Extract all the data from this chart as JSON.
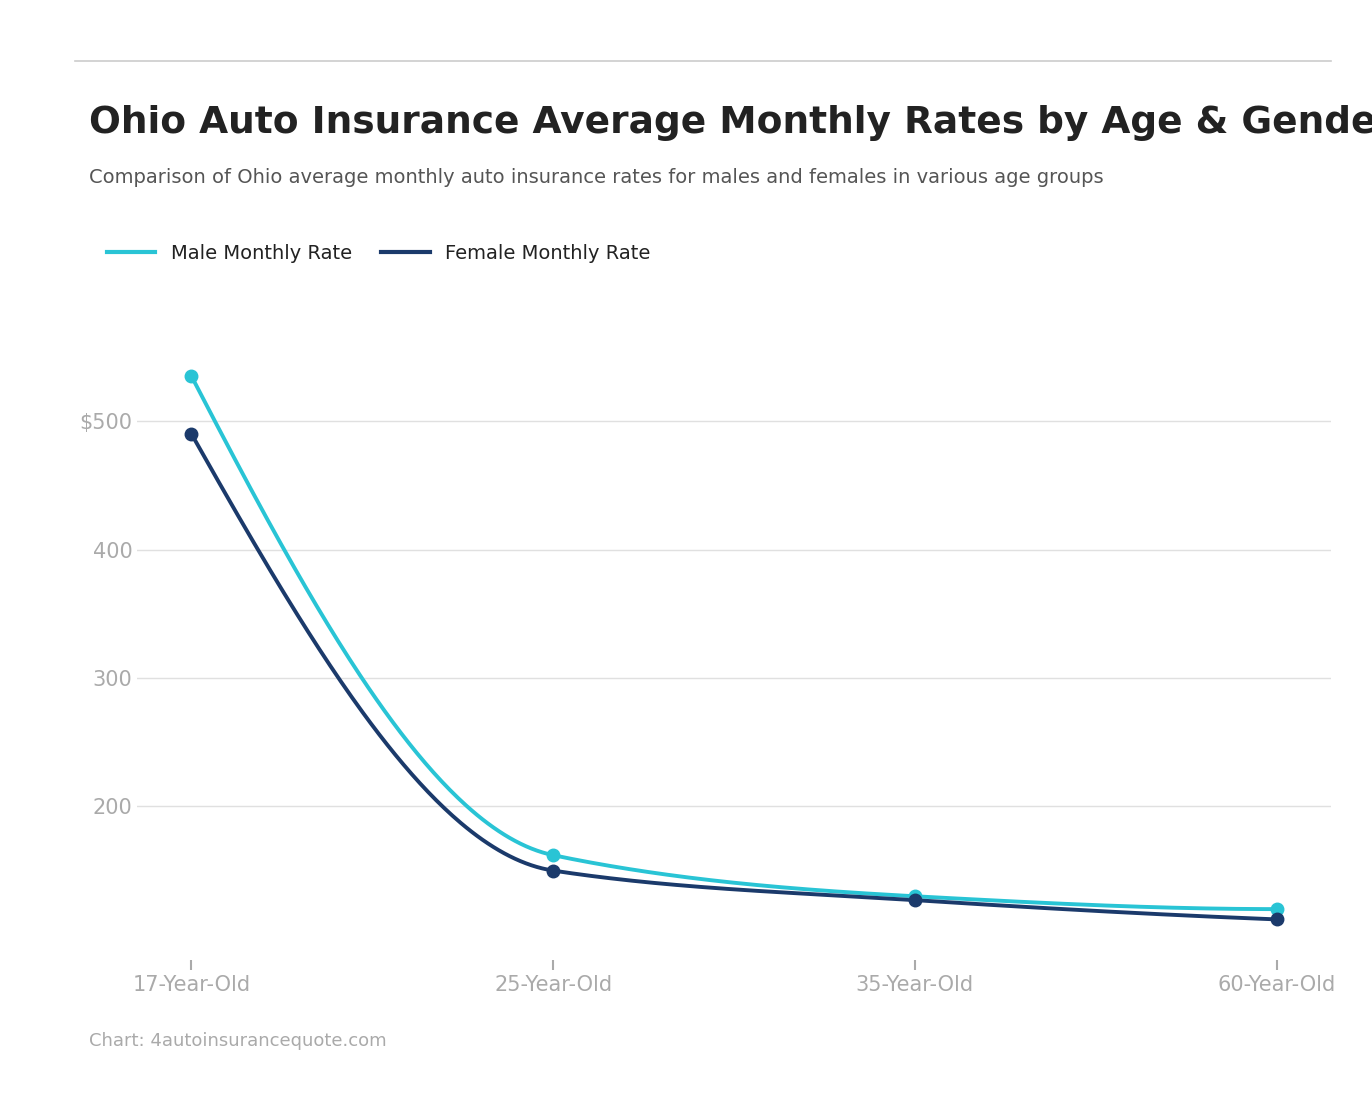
{
  "title": "Ohio Auto Insurance Average Monthly Rates by Age & Gender",
  "subtitle": "Comparison of Ohio average monthly auto insurance rates for males and females in various age groups",
  "x_labels": [
    "17-Year-Old",
    "25-Year-Old",
    "35-Year-Old",
    "60-Year-Old"
  ],
  "x_positions": [
    0,
    1,
    2,
    3
  ],
  "male_values": [
    535,
    162,
    130,
    120
  ],
  "female_values": [
    490,
    150,
    127,
    112
  ],
  "male_color": "#29C4D5",
  "female_color": "#1B3A6B",
  "male_label": "Male Monthly Rate",
  "female_label": "Female Monthly Rate",
  "y_ticks": [
    200,
    300,
    400,
    500
  ],
  "ylim": [
    80,
    570
  ],
  "background_color": "#ffffff",
  "grid_color": "#e0e0e0",
  "title_color": "#222222",
  "subtitle_color": "#555555",
  "axis_label_color": "#aaaaaa",
  "source_text": "Chart: 4autoinsurancequote.com",
  "line_width": 2.8,
  "marker_size": 9
}
